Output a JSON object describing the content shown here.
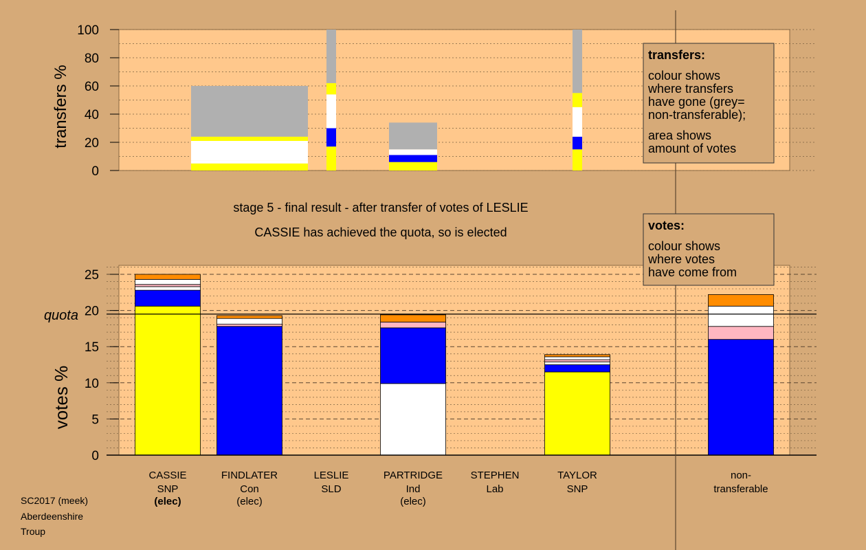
{
  "chart_data": [
    {
      "type": "bar",
      "ylabel": "transfers %",
      "ylim": [
        0,
        100
      ],
      "yticks": [
        "0",
        "20",
        "40",
        "60",
        "80",
        "100"
      ],
      "categories": [
        "CASSIE",
        "FINDLATER",
        "LESLIE",
        "PARTRIDGE",
        "STEPHEN",
        "TAYLOR"
      ],
      "bar_width_note": "area shows amount of votes",
      "segments": [
        [],
        [
          {
            "from": 0,
            "to": 5,
            "color": "#ffff00"
          },
          {
            "from": 5,
            "to": 7,
            "color": "#ffffff"
          },
          {
            "from": 7,
            "to": 21,
            "color": "#ffffff"
          },
          {
            "from": 21,
            "to": 24,
            "color": "#ffff00"
          },
          {
            "from": 24,
            "to": 60,
            "color": "#b0b0b0"
          }
        ],
        [
          {
            "from": 0,
            "to": 17,
            "color": "#ffff00"
          },
          {
            "from": 17,
            "to": 30,
            "color": "#0000ff"
          },
          {
            "from": 30,
            "to": 54,
            "color": "#ffffff"
          },
          {
            "from": 54,
            "to": 62,
            "color": "#ffff00"
          },
          {
            "from": 62,
            "to": 100,
            "color": "#b0b0b0"
          }
        ],
        [
          {
            "from": 0,
            "to": 6,
            "color": "#ffff00"
          },
          {
            "from": 6,
            "to": 11,
            "color": "#0000ff"
          },
          {
            "from": 11,
            "to": 15,
            "color": "#ffffff"
          },
          {
            "from": 15,
            "to": 34,
            "color": "#b0b0b0"
          }
        ],
        [],
        [
          {
            "from": 0,
            "to": 15,
            "color": "#ffff00"
          },
          {
            "from": 15,
            "to": 24,
            "color": "#0000ff"
          },
          {
            "from": 24,
            "to": 45,
            "color": "#ffffff"
          },
          {
            "from": 45,
            "to": 55,
            "color": "#ffff00"
          },
          {
            "from": 55,
            "to": 100,
            "color": "#b0b0b0"
          }
        ]
      ]
    },
    {
      "type": "bar",
      "ylabel": "votes %",
      "ylim": [
        0,
        25
      ],
      "yticks": [
        "0",
        "5",
        "10",
        "15",
        "20",
        "25"
      ],
      "quota": 19.5,
      "quota_label": "quota",
      "categories": [
        "CASSIE",
        "FINDLATER",
        "LESLIE",
        "PARTRIDGE",
        "STEPHEN",
        "TAYLOR",
        "non-transferable"
      ],
      "segments": [
        [
          {
            "from": 0,
            "to": 20.6,
            "color": "#ffff00"
          },
          {
            "from": 20.6,
            "to": 22.8,
            "color": "#0000ff"
          },
          {
            "from": 22.8,
            "to": 23.3,
            "color": "#ffffff"
          },
          {
            "from": 23.3,
            "to": 23.6,
            "color": "#ffb6c1"
          },
          {
            "from": 23.6,
            "to": 24.3,
            "color": "#ffffff"
          },
          {
            "from": 24.3,
            "to": 25.0,
            "color": "#ff8c00"
          }
        ],
        [
          {
            "from": 0,
            "to": 17.8,
            "color": "#0000ff"
          },
          {
            "from": 17.8,
            "to": 18.1,
            "color": "#ffb6c1"
          },
          {
            "from": 18.1,
            "to": 18.9,
            "color": "#ffffff"
          },
          {
            "from": 18.9,
            "to": 19.3,
            "color": "#ff8c00"
          }
        ],
        [],
        [
          {
            "from": 0,
            "to": 9.9,
            "color": "#ffffff"
          },
          {
            "from": 9.9,
            "to": 17.6,
            "color": "#0000ff"
          },
          {
            "from": 17.6,
            "to": 18.4,
            "color": "#ffb6c1"
          },
          {
            "from": 18.4,
            "to": 19.4,
            "color": "#ff8c00"
          }
        ],
        [],
        [
          {
            "from": 0,
            "to": 11.5,
            "color": "#ffff00"
          },
          {
            "from": 11.5,
            "to": 12.5,
            "color": "#0000ff"
          },
          {
            "from": 12.5,
            "to": 12.9,
            "color": "#ffffff"
          },
          {
            "from": 12.9,
            "to": 13.2,
            "color": "#ffb6c1"
          },
          {
            "from": 13.2,
            "to": 13.6,
            "color": "#ffffff"
          },
          {
            "from": 13.6,
            "to": 13.9,
            "color": "#ff8c00"
          }
        ],
        [
          {
            "from": 0,
            "to": 16.0,
            "color": "#0000ff"
          },
          {
            "from": 16.0,
            "to": 17.8,
            "color": "#ffb6c1"
          },
          {
            "from": 17.8,
            "to": 20.6,
            "color": "#ffffff"
          },
          {
            "from": 20.6,
            "to": 22.2,
            "color": "#ff8c00"
          }
        ]
      ]
    }
  ],
  "candidates": [
    {
      "name": "CASSIE",
      "party": "SNP",
      "status": "(elec)",
      "status_bold": true
    },
    {
      "name": "FINDLATER",
      "party": "Con",
      "status": "(elec)",
      "status_bold": false
    },
    {
      "name": "LESLIE",
      "party": "SLD",
      "status": "",
      "status_bold": false
    },
    {
      "name": "PARTRIDGE",
      "party": "Ind",
      "status": "(elec)",
      "status_bold": false
    },
    {
      "name": "STEPHEN",
      "party": "Lab",
      "status": "",
      "status_bold": false
    },
    {
      "name": "TAYLOR",
      "party": "SNP",
      "status": "",
      "status_bold": false
    }
  ],
  "nontransferable_label": [
    "non-",
    "transferable"
  ],
  "stage_title": "stage 5 - final result - after transfer of votes of LESLIE",
  "stage_subtitle": "CASSIE has achieved the quota, so is elected",
  "legend_transfers": {
    "title": "transfers:",
    "lines1": [
      "colour shows",
      "where transfers",
      "have gone (grey=",
      "non-transferable);"
    ],
    "lines2": [
      "area shows",
      "amount of votes"
    ]
  },
  "legend_votes": {
    "title": "votes:",
    "lines": [
      "colour shows",
      "where votes",
      "have come from"
    ]
  },
  "footer": [
    "SC2017 (meek)",
    "Aberdeenshire",
    "Troup"
  ],
  "colors": {
    "background": "#d6aa78",
    "plot_bg": "#ffc88c",
    "legend_bg": "#d6aa78"
  }
}
